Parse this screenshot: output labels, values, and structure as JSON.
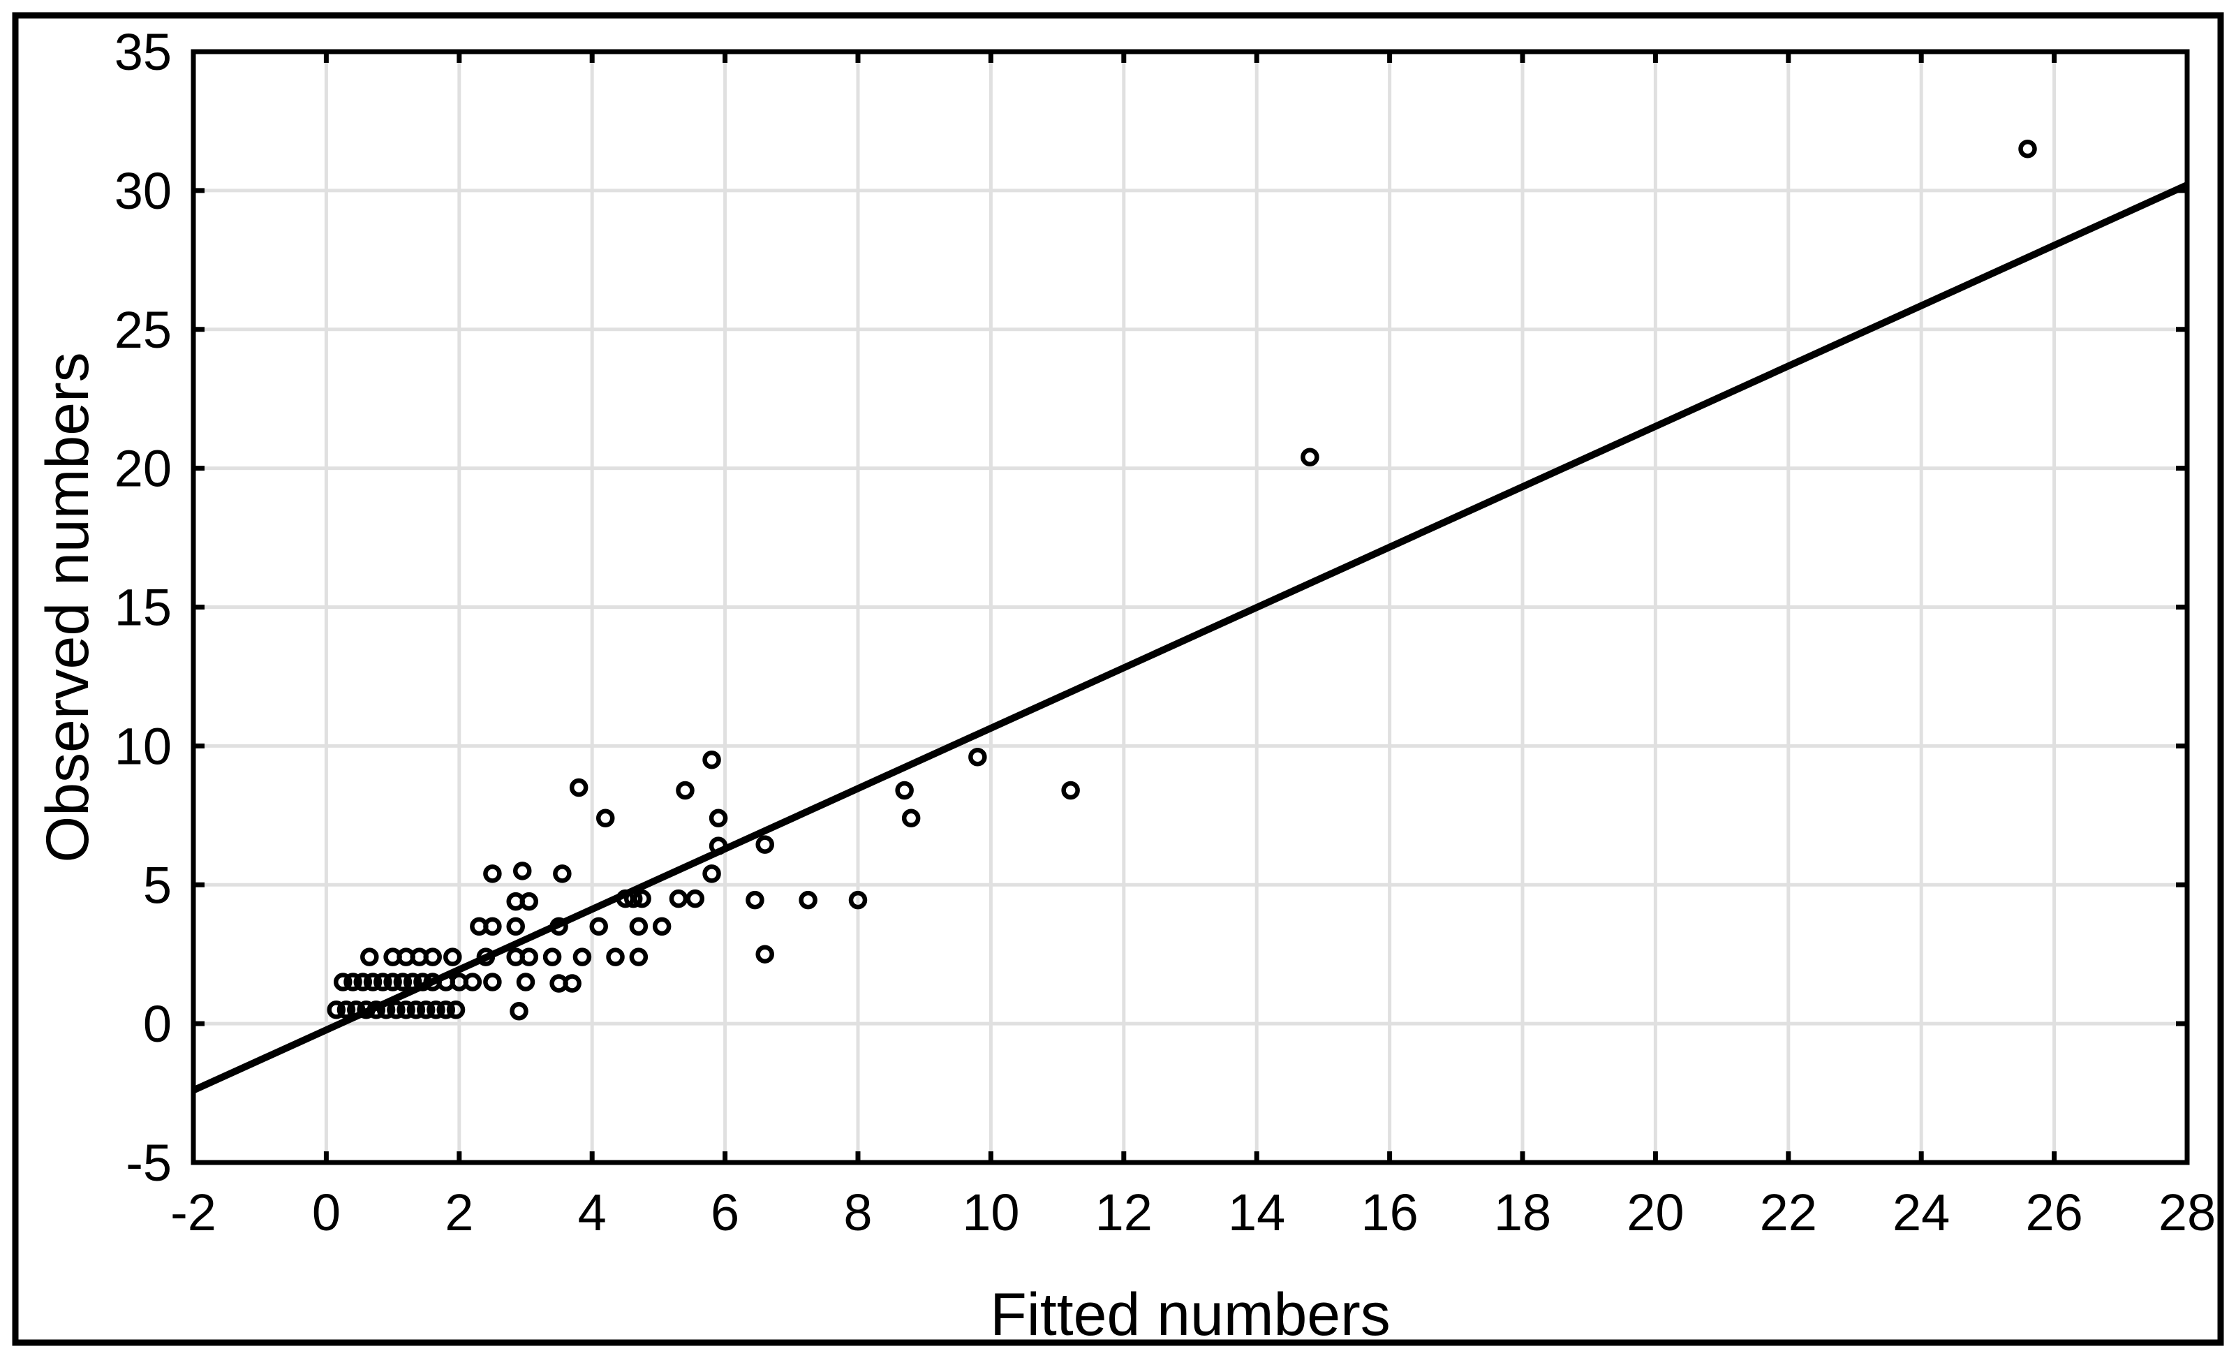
{
  "chart_data": {
    "type": "scatter",
    "title": "",
    "xlabel": "Fitted numbers",
    "ylabel": "Observed numbers",
    "xlim": [
      -2,
      28
    ],
    "ylim": [
      -5,
      35
    ],
    "x_ticks": [
      -2,
      0,
      2,
      4,
      6,
      8,
      10,
      12,
      14,
      16,
      18,
      20,
      22,
      24,
      26,
      28
    ],
    "y_ticks": [
      -5,
      0,
      5,
      10,
      15,
      20,
      25,
      30,
      35
    ],
    "grid": true,
    "legend_position": "none",
    "marker": "open-circle",
    "colors": {
      "points": "#000000",
      "line": "#000000",
      "grid": "#e0e0e0",
      "frame": "#000000",
      "border": "#000000",
      "background": "#ffffff"
    },
    "regression_line": {
      "x1": -2,
      "y1": -2.4,
      "x2": 28,
      "y2": 30.2
    },
    "points": [
      [
        0.15,
        0.5
      ],
      [
        0.3,
        0.5
      ],
      [
        0.45,
        0.5
      ],
      [
        0.6,
        0.5
      ],
      [
        0.75,
        0.5
      ],
      [
        0.9,
        0.5
      ],
      [
        1.05,
        0.5
      ],
      [
        1.2,
        0.5
      ],
      [
        1.35,
        0.5
      ],
      [
        1.5,
        0.5
      ],
      [
        1.65,
        0.5
      ],
      [
        1.8,
        0.5
      ],
      [
        1.95,
        0.5
      ],
      [
        2.9,
        0.45
      ],
      [
        0.25,
        1.5
      ],
      [
        0.4,
        1.5
      ],
      [
        0.55,
        1.5
      ],
      [
        0.7,
        1.5
      ],
      [
        0.85,
        1.5
      ],
      [
        1.0,
        1.5
      ],
      [
        1.15,
        1.5
      ],
      [
        1.3,
        1.5
      ],
      [
        1.45,
        1.5
      ],
      [
        1.6,
        1.5
      ],
      [
        1.8,
        1.5
      ],
      [
        2.0,
        1.5
      ],
      [
        2.2,
        1.5
      ],
      [
        2.5,
        1.5
      ],
      [
        3.0,
        1.5
      ],
      [
        3.5,
        1.45
      ],
      [
        3.7,
        1.45
      ],
      [
        0.65,
        2.4
      ],
      [
        1.0,
        2.4
      ],
      [
        1.2,
        2.4
      ],
      [
        1.4,
        2.4
      ],
      [
        1.6,
        2.4
      ],
      [
        1.9,
        2.4
      ],
      [
        2.4,
        2.4
      ],
      [
        2.85,
        2.4
      ],
      [
        3.05,
        2.4
      ],
      [
        3.4,
        2.4
      ],
      [
        3.85,
        2.4
      ],
      [
        4.35,
        2.4
      ],
      [
        4.7,
        2.4
      ],
      [
        6.6,
        2.5
      ],
      [
        2.3,
        3.5
      ],
      [
        2.5,
        3.5
      ],
      [
        2.85,
        3.5
      ],
      [
        3.5,
        3.5
      ],
      [
        4.1,
        3.5
      ],
      [
        4.7,
        3.5
      ],
      [
        5.05,
        3.5
      ],
      [
        2.85,
        4.4
      ],
      [
        3.05,
        4.4
      ],
      [
        4.5,
        4.5
      ],
      [
        4.62,
        4.5
      ],
      [
        4.75,
        4.5
      ],
      [
        5.3,
        4.5
      ],
      [
        5.55,
        4.5
      ],
      [
        6.45,
        4.45
      ],
      [
        7.25,
        4.45
      ],
      [
        8.0,
        4.45
      ],
      [
        5.8,
        5.4
      ],
      [
        2.5,
        5.4
      ],
      [
        2.95,
        5.5
      ],
      [
        3.55,
        5.4
      ],
      [
        5.9,
        6.4
      ],
      [
        6.6,
        6.45
      ],
      [
        4.2,
        7.4
      ],
      [
        5.9,
        7.4
      ],
      [
        8.8,
        7.4
      ],
      [
        3.8,
        8.5
      ],
      [
        5.4,
        8.4
      ],
      [
        8.7,
        8.4
      ],
      [
        11.2,
        8.4
      ],
      [
        5.8,
        9.5
      ],
      [
        9.8,
        9.6
      ],
      [
        14.8,
        20.4
      ],
      [
        25.6,
        31.5
      ]
    ]
  }
}
